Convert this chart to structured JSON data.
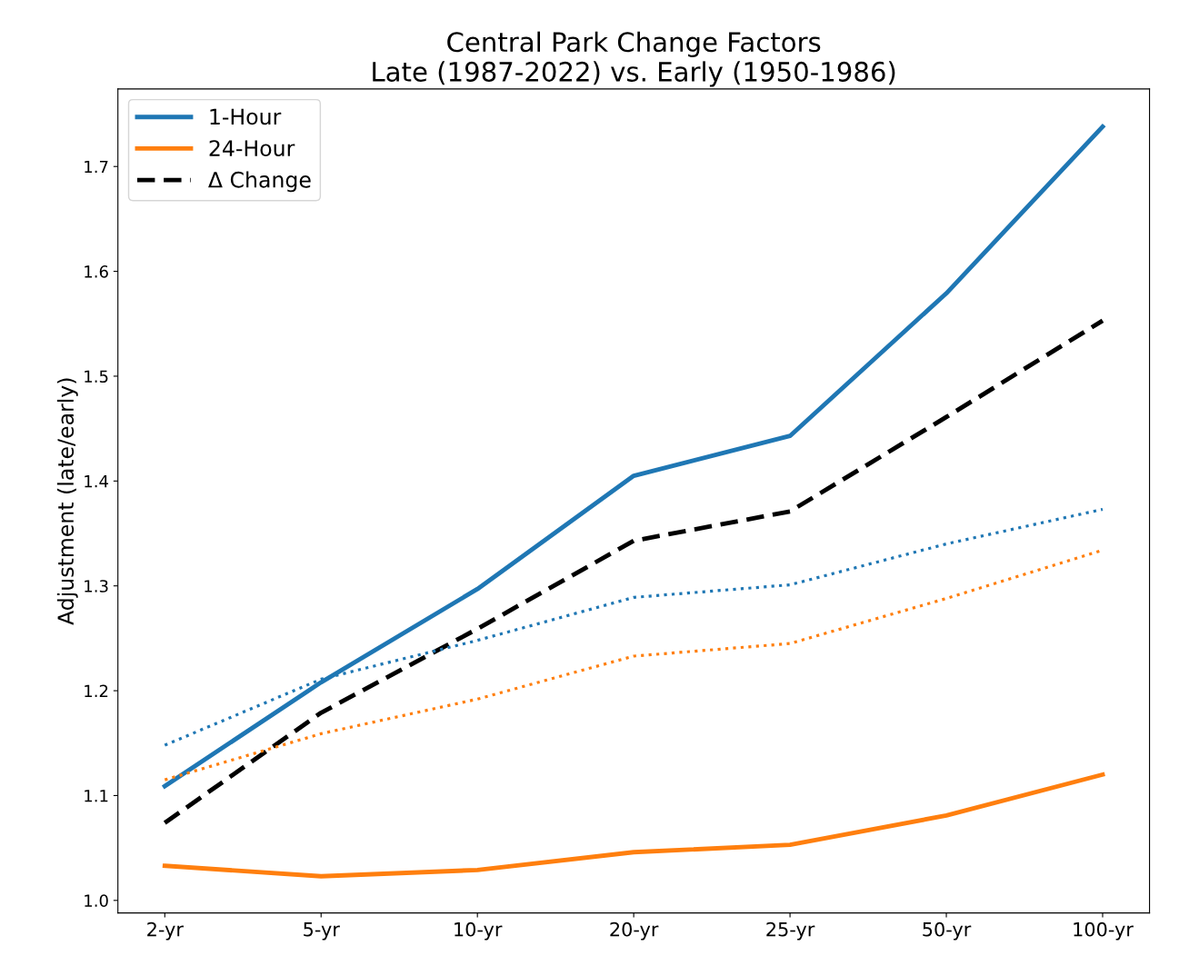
{
  "chart_data": {
    "type": "line",
    "title": "Central Park Change Factors\nLate (1987-2022) vs. Early (1950-1986)",
    "ylabel": "Adjustment (late/early)",
    "categories": [
      "2-yr",
      "5-yr",
      "10-yr",
      "20-yr",
      "25-yr",
      "50-yr",
      "100-yr"
    ],
    "series": [
      {
        "name": "1-Hour",
        "color": "#1f77b4",
        "line_style": "solid",
        "values": [
          1.109,
          1.208,
          1.297,
          1.405,
          1.443,
          1.579,
          1.738
        ]
      },
      {
        "name": "24-Hour",
        "color": "#ff7f0e",
        "line_style": "solid",
        "values": [
          1.033,
          1.023,
          1.029,
          1.046,
          1.053,
          1.081,
          1.12
        ]
      },
      {
        "name": "Δ Change",
        "color": "#000000",
        "line_style": "dashed",
        "values": [
          1.074,
          1.179,
          1.259,
          1.343,
          1.371,
          1.461,
          1.553
        ]
      },
      {
        "color": "#1f77b4",
        "line_style": "dotted",
        "values": [
          1.148,
          1.211,
          1.248,
          1.289,
          1.301,
          1.34,
          1.373
        ]
      },
      {
        "color": "#ff7f0e",
        "line_style": "dotted",
        "values": [
          1.115,
          1.159,
          1.192,
          1.233,
          1.245,
          1.288,
          1.334
        ]
      }
    ],
    "ylim": [
      0.988,
      1.774
    ],
    "yticks": [
      {
        "value": 1,
        "label": "1.0"
      },
      1.1,
      1.2,
      1.3,
      1.4,
      1.5,
      1.6,
      1.7
    ],
    "legend": "top left",
    "grid": false,
    "marker": "none"
  }
}
